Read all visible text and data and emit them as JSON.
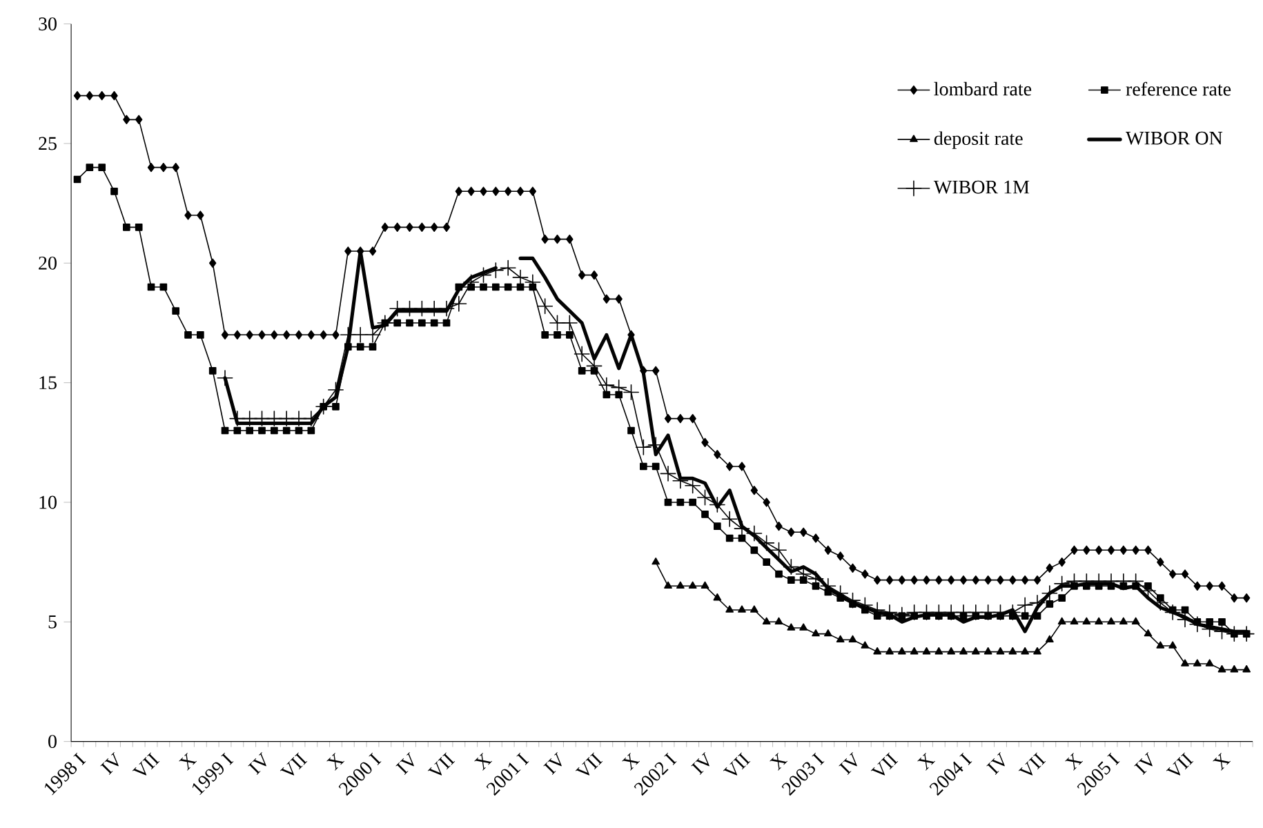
{
  "chart_data": {
    "type": "line",
    "legend": "top right",
    "grid": false,
    "categories": [
      "1998 I",
      null,
      null,
      "IV",
      null,
      null,
      "VII",
      null,
      null,
      "X",
      null,
      null,
      "1999 I",
      null,
      null,
      "IV",
      null,
      null,
      "VII",
      null,
      null,
      "X",
      null,
      null,
      "2000 I",
      null,
      null,
      "IV",
      null,
      null,
      "VII",
      null,
      null,
      "X",
      null,
      null,
      "2001 I",
      null,
      null,
      "IV",
      null,
      null,
      "VII",
      null,
      null,
      "X",
      null,
      null,
      "2002 I",
      null,
      null,
      "IV",
      null,
      null,
      "VII",
      null,
      null,
      "X",
      null,
      null,
      "2003 I",
      null,
      null,
      "IV",
      null,
      null,
      "VII",
      null,
      null,
      "X",
      null,
      null,
      "2004 I",
      null,
      null,
      "IV",
      null,
      null,
      "VII",
      null,
      null,
      "X",
      null,
      null,
      "2005 I",
      null,
      null,
      "IV",
      null,
      null,
      "VII",
      null,
      null,
      "X",
      null,
      null
    ],
    "ylim": [
      0,
      30
    ],
    "yticks": [
      0,
      5,
      10,
      15,
      20,
      25,
      30
    ],
    "series": [
      {
        "name": "lombard rate",
        "color": "#000000",
        "marker": "diamond",
        "values": [
          27,
          27,
          27,
          27,
          26,
          26,
          24,
          24,
          24,
          22,
          22,
          20,
          17,
          17,
          17,
          17,
          17,
          17,
          17,
          17,
          17,
          17,
          20.5,
          20.5,
          20.5,
          21.5,
          21.5,
          21.5,
          21.5,
          21.5,
          21.5,
          23,
          23,
          23,
          23,
          23,
          23,
          23,
          21,
          21,
          21,
          19.5,
          19.5,
          18.5,
          18.5,
          17,
          15.5,
          15.5,
          13.5,
          13.5,
          13.5,
          12.5,
          12,
          11.5,
          11.5,
          10.5,
          10,
          9,
          8.75,
          8.75,
          8.5,
          8,
          7.75,
          7.25,
          7,
          6.75,
          6.75,
          6.75,
          6.75,
          6.75,
          6.75,
          6.75,
          6.75,
          6.75,
          6.75,
          6.75,
          6.75,
          6.75,
          6.75,
          7.25,
          7.5,
          8,
          8,
          8,
          8,
          8,
          8,
          8,
          7.5,
          7,
          7,
          6.5,
          6.5,
          6.5,
          6,
          6
        ]
      },
      {
        "name": "reference rate",
        "color": "#010101",
        "marker": "square",
        "values": [
          23.5,
          24,
          24,
          23,
          21.5,
          21.5,
          19,
          19,
          18,
          17,
          17,
          15.5,
          13,
          13,
          13,
          13,
          13,
          13,
          13,
          13,
          14,
          14,
          16.5,
          16.5,
          16.5,
          17.5,
          17.5,
          17.5,
          17.5,
          17.5,
          17.5,
          19,
          19,
          19,
          19,
          19,
          19,
          19,
          17,
          17,
          17,
          15.5,
          15.5,
          14.5,
          14.5,
          13,
          11.5,
          11.5,
          10,
          10,
          10,
          9.5,
          9,
          8.5,
          8.5,
          8,
          7.5,
          7,
          6.75,
          6.75,
          6.5,
          6.25,
          6,
          5.75,
          5.5,
          5.25,
          5.25,
          5.25,
          5.25,
          5.25,
          5.25,
          5.25,
          5.25,
          5.25,
          5.25,
          5.25,
          5.25,
          5.25,
          5.25,
          5.75,
          6,
          6.5,
          6.5,
          6.5,
          6.5,
          6.5,
          6.5,
          6.5,
          6,
          5.5,
          5.5,
          5,
          5,
          5,
          4.5,
          4.5
        ]
      },
      {
        "name": "deposit rate",
        "color": "#020202",
        "marker": "triangle",
        "values": [
          null,
          null,
          null,
          null,
          null,
          null,
          null,
          null,
          null,
          null,
          null,
          null,
          null,
          null,
          null,
          null,
          null,
          null,
          null,
          null,
          null,
          null,
          null,
          null,
          null,
          null,
          null,
          null,
          null,
          null,
          null,
          null,
          null,
          null,
          null,
          null,
          null,
          null,
          null,
          null,
          null,
          null,
          null,
          null,
          null,
          null,
          null,
          7.5,
          6.5,
          6.5,
          6.5,
          6.5,
          6,
          5.5,
          5.5,
          5.5,
          5,
          5,
          4.75,
          4.75,
          4.5,
          4.5,
          4.25,
          4.25,
          4,
          3.75,
          3.75,
          3.75,
          3.75,
          3.75,
          3.75,
          3.75,
          3.75,
          3.75,
          3.75,
          3.75,
          3.75,
          3.75,
          3.75,
          4.25,
          5,
          5,
          5,
          5,
          5,
          5,
          5,
          4.5,
          4,
          4,
          3.25,
          3.25,
          3.25,
          3,
          3,
          3
        ]
      },
      {
        "name": "WIBOR ON",
        "color": "#030303",
        "marker": "none",
        "values": [
          null,
          null,
          null,
          null,
          null,
          null,
          null,
          null,
          null,
          null,
          null,
          null,
          15.2,
          13.3,
          13.3,
          13.3,
          13.3,
          13.3,
          13.3,
          13.3,
          14,
          14.4,
          16.5,
          20.5,
          17.3,
          17.4,
          18,
          18,
          18,
          18,
          18,
          18.9,
          19.4,
          19.6,
          19.8,
          null,
          20.2,
          20.2,
          19.4,
          18.5,
          18,
          17.5,
          16,
          17,
          15.6,
          17,
          15.4,
          12,
          12.8,
          11,
          11,
          10.8,
          9.8,
          10.5,
          9,
          8.6,
          8.1,
          7.6,
          7.1,
          7.3,
          7,
          6.4,
          6.1,
          5.8,
          5.6,
          5.4,
          5.3,
          5,
          5.2,
          5.3,
          5.3,
          5.3,
          5,
          5.2,
          5.2,
          5.3,
          5.5,
          4.6,
          5.6,
          6.2,
          6.5,
          6.5,
          6.6,
          6.6,
          6.6,
          6.4,
          6.5,
          6,
          5.6,
          5.4,
          5.2,
          4.9,
          4.8,
          4.7,
          4.6,
          4.6
        ]
      },
      {
        "name": "WIBOR 1M",
        "color": "#040404",
        "marker": "cross",
        "values": [
          null,
          null,
          null,
          null,
          null,
          null,
          null,
          null,
          null,
          null,
          null,
          null,
          15.2,
          13.5,
          13.5,
          13.5,
          13.5,
          13.5,
          13.5,
          13.5,
          14,
          14.7,
          17,
          17,
          17,
          17.5,
          18.1,
          18.1,
          18.1,
          18.1,
          18.1,
          18.3,
          19.2,
          19.5,
          19.7,
          19.8,
          19.4,
          19.2,
          18.2,
          17.5,
          17.5,
          16.2,
          15.7,
          14.9,
          14.8,
          14.6,
          12.3,
          12.4,
          11.2,
          10.9,
          10.7,
          10.2,
          9.9,
          9.3,
          8.9,
          8.7,
          8.3,
          8,
          7.3,
          7,
          6.8,
          6.5,
          6.2,
          5.9,
          5.7,
          5.5,
          5.4,
          5.3,
          5.4,
          5.4,
          5.4,
          5.4,
          5.4,
          5.4,
          5.4,
          5.4,
          5.4,
          5.7,
          5.8,
          6.2,
          6.6,
          6.7,
          6.7,
          6.7,
          6.7,
          6.7,
          6.7,
          6.3,
          5.8,
          5.4,
          5.1,
          4.9,
          4.7,
          4.6,
          4.5,
          4.5
        ]
      }
    ]
  }
}
